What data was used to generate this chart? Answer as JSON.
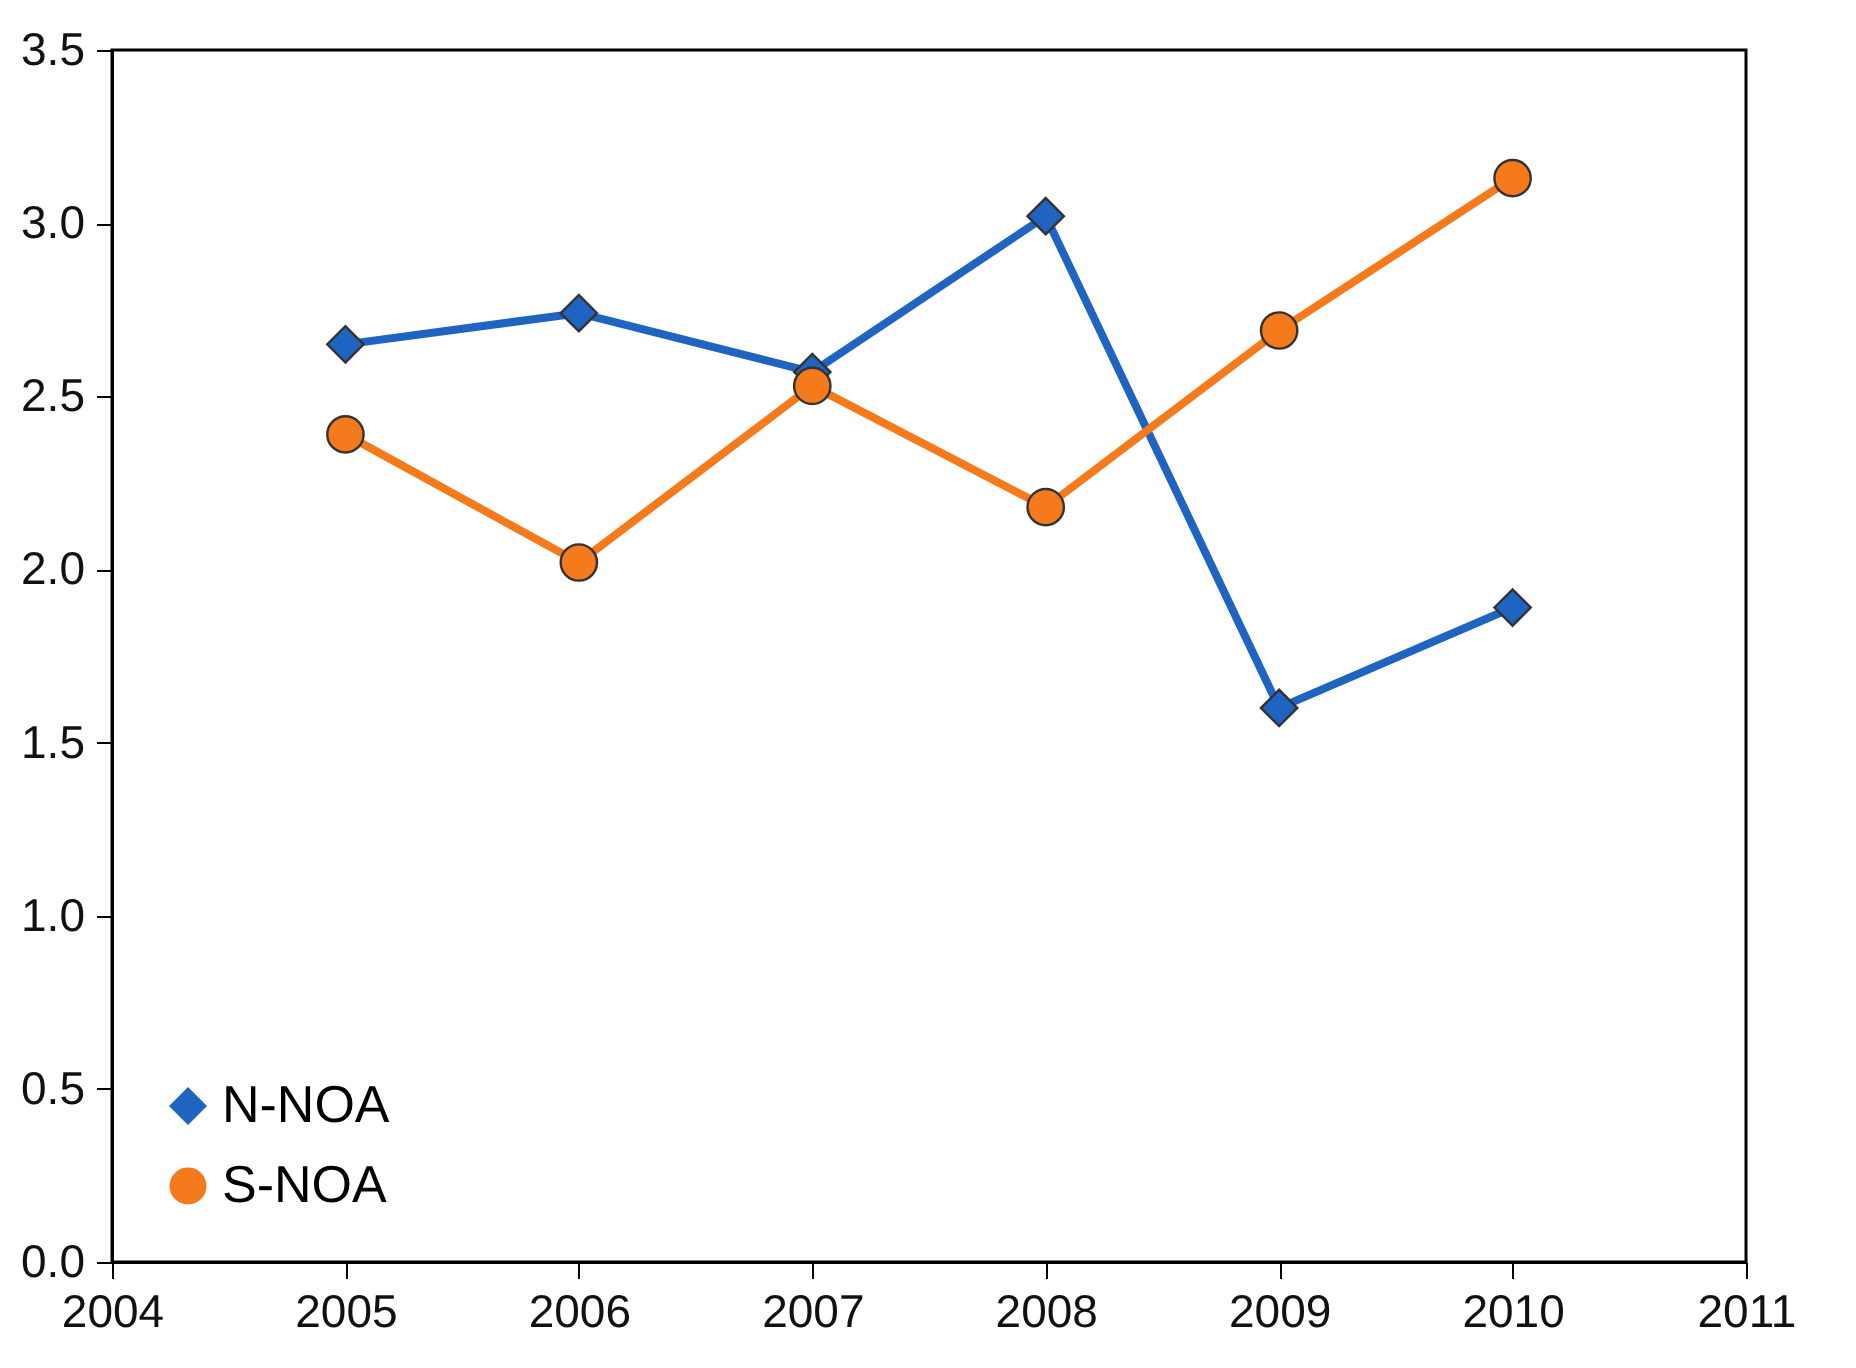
{
  "chart_data": {
    "type": "line",
    "x": [
      2005,
      2006,
      2007,
      2008,
      2009,
      2010
    ],
    "series": [
      {
        "name": "N-NOA",
        "color": "#1f64c0",
        "marker": "diamond",
        "values": [
          2.65,
          2.74,
          2.57,
          3.02,
          1.6,
          1.89
        ]
      },
      {
        "name": "S-NOA",
        "color": "#f47a1c",
        "marker": "circle",
        "values": [
          2.39,
          2.02,
          2.53,
          2.18,
          2.69,
          3.13
        ]
      }
    ],
    "xlim": [
      2004,
      2011
    ],
    "xticks": [
      2004,
      2005,
      2006,
      2007,
      2008,
      2009,
      2010,
      2011
    ],
    "ylim": [
      0,
      3.5
    ],
    "yticks": [
      {
        "value": 0,
        "label": "0.0"
      },
      {
        "value": 0.5,
        "label": "0.5"
      },
      {
        "value": 1,
        "label": "1.0"
      },
      {
        "value": 1.5,
        "label": "1.5"
      },
      {
        "value": 2,
        "label": "2.0"
      },
      {
        "value": 2.5,
        "label": "2.5"
      },
      {
        "value": 3,
        "label": "3.0"
      },
      {
        "value": 3.5,
        "label": "3.5"
      }
    ],
    "grid": false,
    "legend": "bottom left",
    "line_style": "solid"
  }
}
